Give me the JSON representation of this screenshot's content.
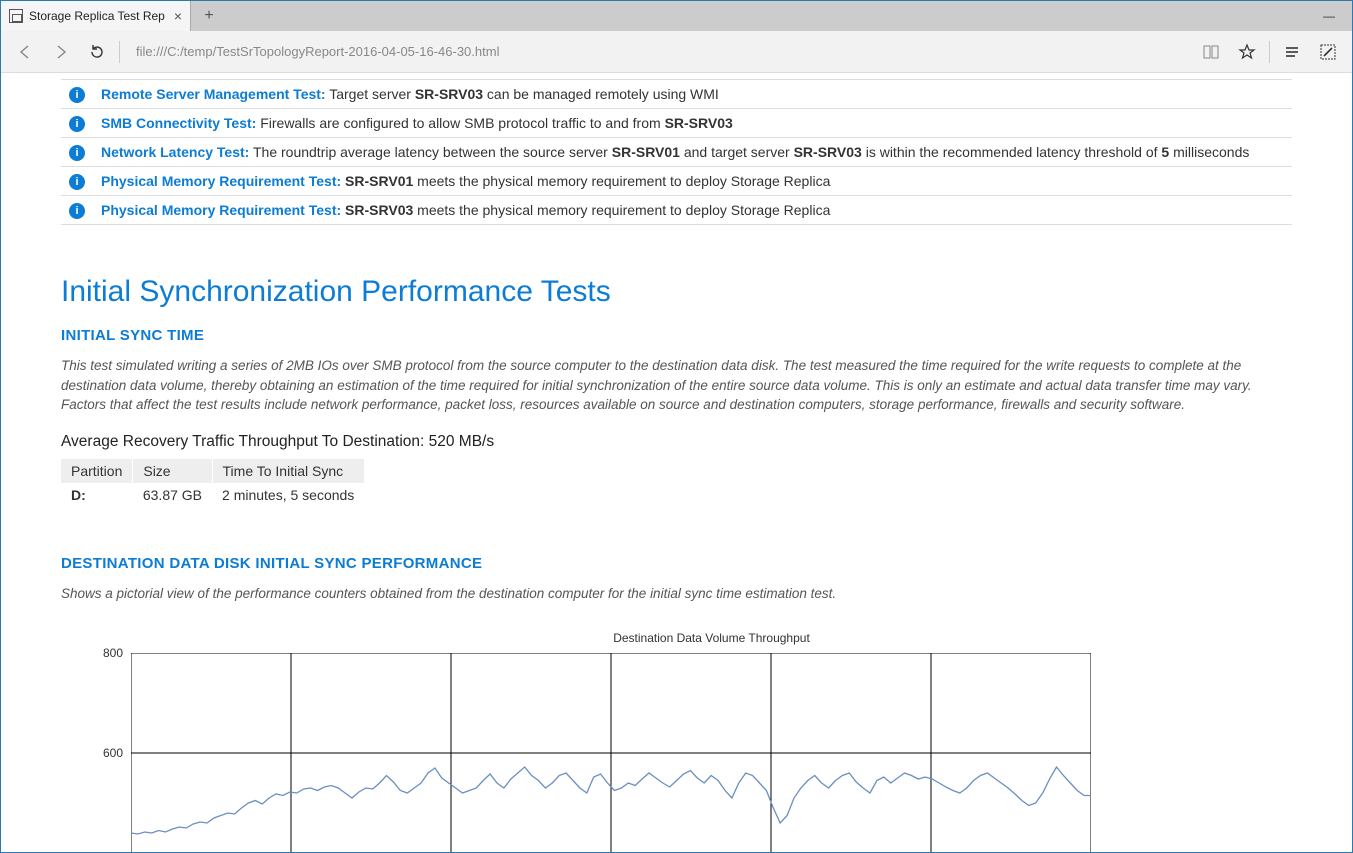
{
  "window": {
    "tab_title": "Storage Replica Test Rep",
    "url": "file:///C:/temp/TestSrTopologyReport-2016-04-05-16-46-30.html"
  },
  "tests": [
    {
      "name": "Remote Server Management Test:",
      "text_before": "Target server ",
      "bold1": "SR-SRV03",
      "text_after": " can be managed remotely using WMI"
    },
    {
      "name": "SMB Connectivity Test:",
      "text_before": "Firewalls are configured to allow SMB protocol traffic to and from ",
      "bold1": "SR-SRV03",
      "text_after": ""
    },
    {
      "name": "Network Latency Test:",
      "text_before": "The roundtrip average latency between the source server ",
      "bold1": "SR-SRV01",
      "mid1": " and target server ",
      "bold2": "SR-SRV03",
      "mid2": " is within the recommended latency threshold of ",
      "bold3": "5",
      "text_after": " milliseconds"
    },
    {
      "name": "Physical Memory Requirement Test:",
      "bold1": "SR-SRV01",
      "text_after": " meets the physical memory requirement to deploy Storage Replica"
    },
    {
      "name": "Physical Memory Requirement Test:",
      "bold1": "SR-SRV03",
      "text_after": " meets the physical memory requirement to deploy Storage Replica"
    }
  ],
  "section_title": "Initial Synchronization Performance Tests",
  "sub1_title": "INITIAL SYNC TIME",
  "sub1_desc": "This test simulated writing a series of 2MB IOs over SMB protocol from the source computer to the destination data disk. The test measured the time required for the write requests to complete at the destination data volume, thereby obtaining an estimation of the time required for initial synchronization of the entire source data volume. This is only an estimate and actual data transfer time may vary. Factors that affect the test results include network performance, packet loss, resources available on source and destination computers, storage performance, firewalls and security software.",
  "metric_label": "Average Recovery Traffic Throughput To Destination: ",
  "metric_value": "520 MB/s",
  "sync_table": {
    "headers": [
      "Partition",
      "Size",
      "Time To Initial Sync"
    ],
    "row": [
      "D:",
      "63.87 GB",
      "2 minutes, 5 seconds"
    ]
  },
  "sub2_title": "DESTINATION DATA DISK INITIAL SYNC PERFORMANCE",
  "sub2_desc": "Shows a pictorial view of the performance counters obtained from the destination computer for the initial sync time estimation test.",
  "chart": {
    "title": "Destination Data Volume Throughput",
    "type": "line",
    "ylim": [
      0,
      800
    ],
    "visible_ymin": 400,
    "visible_ymax": 800,
    "yticks": [
      600,
      800
    ],
    "x_gridlines": 6,
    "line_color": "#6a8fbf",
    "grid_color": "#000000",
    "background_color": "#ffffff",
    "values": [
      440,
      438,
      442,
      440,
      445,
      442,
      448,
      452,
      450,
      458,
      462,
      460,
      470,
      475,
      480,
      478,
      490,
      500,
      505,
      498,
      510,
      518,
      515,
      522,
      520,
      528,
      530,
      525,
      532,
      535,
      530,
      520,
      510,
      522,
      530,
      528,
      540,
      555,
      542,
      525,
      520,
      530,
      540,
      560,
      570,
      550,
      540,
      530,
      520,
      525,
      530,
      545,
      558,
      540,
      530,
      548,
      560,
      572,
      555,
      545,
      530,
      540,
      555,
      560,
      545,
      530,
      520,
      552,
      558,
      540,
      525,
      530,
      540,
      535,
      548,
      560,
      550,
      540,
      532,
      545,
      558,
      565,
      550,
      540,
      555,
      545,
      525,
      510,
      540,
      560,
      555,
      540,
      525,
      490,
      460,
      475,
      510,
      530,
      545,
      555,
      540,
      530,
      545,
      555,
      560,
      542,
      530,
      520,
      545,
      552,
      540,
      550,
      560,
      555,
      548,
      552,
      548,
      540,
      532,
      525,
      520,
      530,
      545,
      555,
      560,
      550,
      540,
      530,
      518,
      505,
      495,
      500,
      520,
      548,
      572,
      555,
      540,
      525,
      515,
      515
    ]
  }
}
